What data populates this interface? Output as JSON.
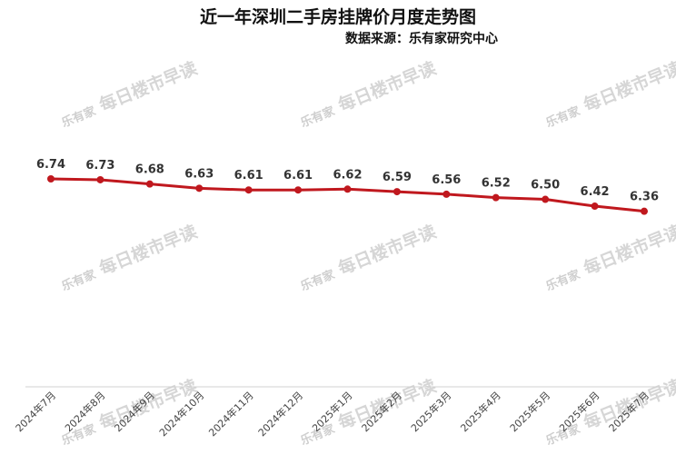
{
  "chart_data": {
    "type": "line",
    "title": "近一年深圳二手房挂牌价月度走势图",
    "subtitle": "数据来源：乐有家研究中心",
    "categories": [
      "2024年7月",
      "2024年8月",
      "2024年9月",
      "2024年10月",
      "2024年11月",
      "2024年12月",
      "2025年1月",
      "2025年2月",
      "2025年3月",
      "2025年4月",
      "2025年5月",
      "2025年6月",
      "2025年7月"
    ],
    "series": [
      {
        "values": [
          6.74,
          6.73,
          6.68,
          6.63,
          6.61,
          6.61,
          6.62,
          6.59,
          6.56,
          6.52,
          6.5,
          6.42,
          6.36
        ]
      }
    ],
    "value_labels": [
      "6.74",
      "6.73",
      "6.68",
      "6.63",
      "6.61",
      "6.61",
      "6.62",
      "6.59",
      "6.56",
      "6.52",
      "6.50",
      "6.42",
      "6.36"
    ],
    "ylim": [
      4.3,
      8.2
    ],
    "grid": false,
    "line_color": "#c0181e"
  },
  "watermark": {
    "logo": "乐有家",
    "text": "每日楼市早读"
  }
}
